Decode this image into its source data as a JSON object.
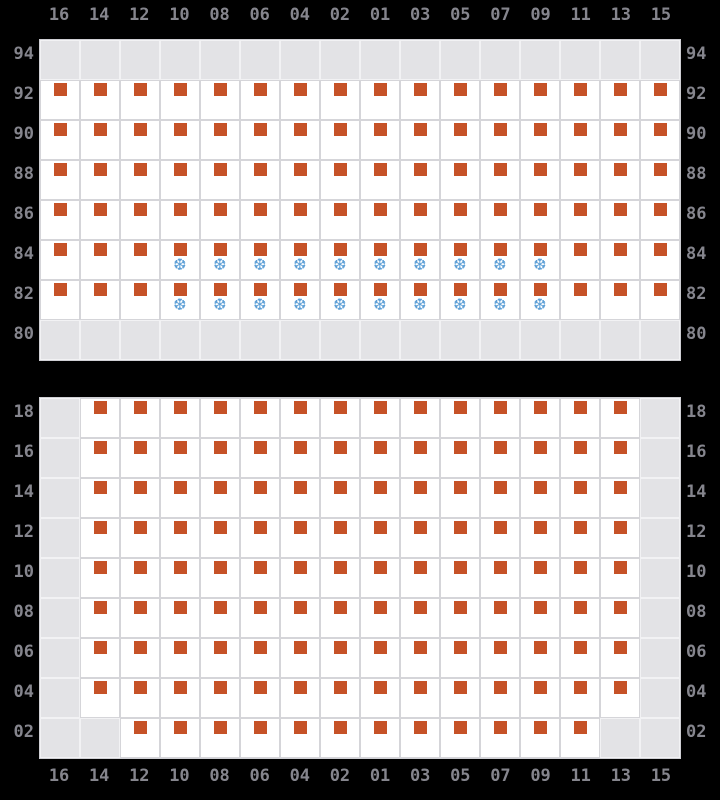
{
  "colors": {
    "background": "#000000",
    "label_text": "#85858d",
    "cell_available_bg": "#ffffff",
    "cell_available_border": "#d5d5d9",
    "cell_empty_bg": "#e3e3e6",
    "cell_empty_border": "#f2f2f4",
    "grid_outline": "#cfcfd4",
    "seat_square": "#c65227",
    "snowflake": "#5d9fd6"
  },
  "icons": {
    "seat_marker_name": "seat-square-icon",
    "snowflake_name": "snowflake-icon",
    "snowflake_glyph": "❆"
  },
  "cell_states": {
    "s": "available-seat",
    "f": "available-seat-with-snowflake",
    "g": "no-seat"
  },
  "column_labels": [
    "16",
    "14",
    "12",
    "10",
    "08",
    "06",
    "04",
    "02",
    "01",
    "03",
    "05",
    "07",
    "09",
    "11",
    "13",
    "15"
  ],
  "upper_section": {
    "row_labels": [
      "94",
      "92",
      "90",
      "88",
      "86",
      "84",
      "82",
      "80"
    ],
    "cells": [
      "gggggggggggggggg",
      "ssssssssssssssss",
      "ssssssssssssssss",
      "ssssssssssssssss",
      "ssssssssssssssss",
      "sssffffffffffsss",
      "sssffffffffffsss",
      "gggggggggggggggg"
    ]
  },
  "lower_section": {
    "row_labels": [
      "18",
      "16",
      "14",
      "12",
      "10",
      "08",
      "06",
      "04",
      "02"
    ],
    "cells": [
      "gssssssssssssssg",
      "gssssssssssssssg",
      "gssssssssssssssg",
      "gssssssssssssssg",
      "gssssssssssssssg",
      "gssssssssssssssg",
      "gssssssssssssssg",
      "gssssssssssssssg",
      "ggssssssssssssgg"
    ]
  }
}
